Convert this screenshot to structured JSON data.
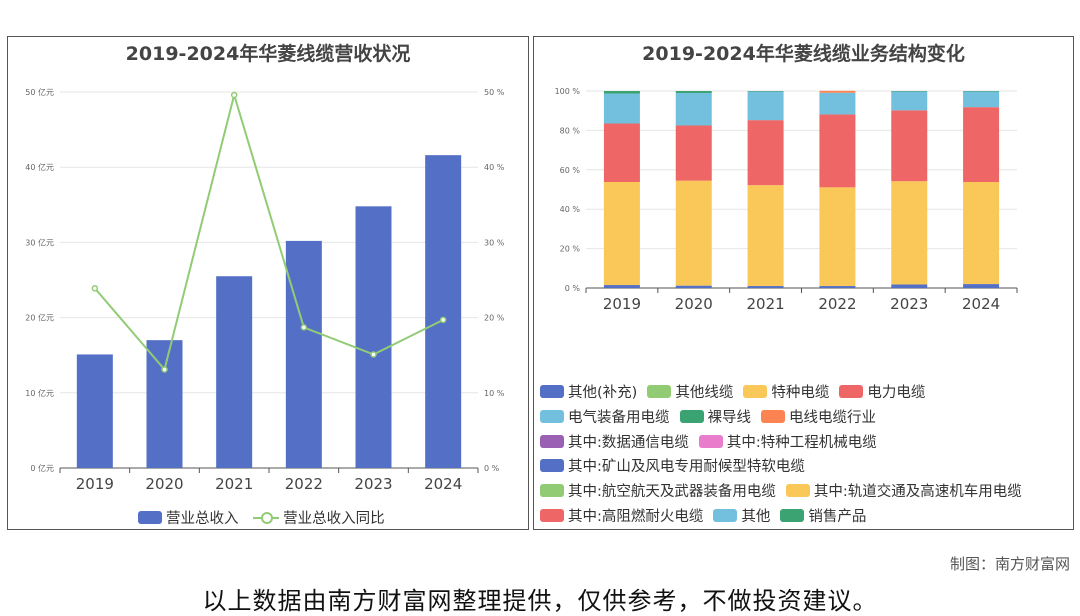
{
  "left_chart": {
    "title": "2019-2024年华菱线缆营收状况",
    "y_left_ticks": [
      "0 亿元",
      "10 亿元",
      "20 亿元",
      "30 亿元",
      "40 亿元",
      "50 亿元"
    ],
    "y_right_ticks": [
      "0 %",
      "10 %",
      "20 %",
      "30 %",
      "40 %",
      "50 %"
    ],
    "legend_bar": "营业总收入",
    "legend_line": "营业总收入同比",
    "bar_color": "#5470c6",
    "line_color": "#91cc75"
  },
  "right_chart": {
    "title": "2019-2024年华菱线缆业务结构变化",
    "y_ticks": [
      "0 %",
      "20 %",
      "40 %",
      "60 %",
      "80 %",
      "100 %"
    ],
    "legend": [
      {
        "name": "其他(补充)",
        "color": "#5470c6"
      },
      {
        "name": "其他线缆",
        "color": "#91cc75"
      },
      {
        "name": "特种电缆",
        "color": "#fac858"
      },
      {
        "name": "电力电缆",
        "color": "#ee6666"
      },
      {
        "name": "电气装备用电缆",
        "color": "#73c0de"
      },
      {
        "name": "裸导线",
        "color": "#3ba272"
      },
      {
        "name": "电线电缆行业",
        "color": "#fc8452"
      },
      {
        "name": "其中:数据通信电缆",
        "color": "#9a60b4"
      },
      {
        "name": "其中:特种工程机械电缆",
        "color": "#ea7ccc"
      },
      {
        "name": "其中:矿山及风电专用耐候型特软电缆",
        "color": "#5470c6"
      },
      {
        "name": "其中:航空航天及武器装备用电缆",
        "color": "#91cc75"
      },
      {
        "name": "其中:轨道交通及高速机车用电缆",
        "color": "#fac858"
      },
      {
        "name": "其中:高阻燃耐火电缆",
        "color": "#ee6666"
      },
      {
        "name": "其他",
        "color": "#73c0de"
      },
      {
        "name": "销售产品",
        "color": "#3ba272"
      }
    ]
  },
  "chart_data": [
    {
      "type": "bar",
      "title": "2019-2024年华菱线缆营收状况",
      "categories": [
        "2019",
        "2020",
        "2021",
        "2022",
        "2023",
        "2024"
      ],
      "series": [
        {
          "name": "营业总收入",
          "type": "bar",
          "axis": "left",
          "values": [
            15.1,
            17.0,
            25.5,
            30.2,
            34.8,
            41.6
          ]
        },
        {
          "name": "营业总收入同比",
          "type": "line",
          "axis": "right",
          "values": [
            23.9,
            13.1,
            49.6,
            18.7,
            15.1,
            19.7
          ]
        }
      ],
      "ylim_left": [
        0,
        50
      ],
      "ylim_right": [
        0,
        50
      ]
    },
    {
      "type": "bar",
      "title": "2019-2024年华菱线缆业务结构变化",
      "stacked": true,
      "categories": [
        "2019",
        "2020",
        "2021",
        "2022",
        "2023",
        "2024"
      ],
      "ylim": [
        0,
        100
      ],
      "series": [
        {
          "name": "其他(补充)",
          "values": [
            1.5,
            1.2,
            1.0,
            1.0,
            1.8,
            2.0
          ]
        },
        {
          "name": "特种电缆",
          "values": [
            52.3,
            53.3,
            51.2,
            50.1,
            52.4,
            51.8
          ]
        },
        {
          "name": "电力电缆",
          "values": [
            29.7,
            28.0,
            33.0,
            37.0,
            36.0,
            38.0
          ]
        },
        {
          "name": "电气装备用电缆",
          "values": [
            15.2,
            16.5,
            14.5,
            11.0,
            9.5,
            7.9
          ]
        },
        {
          "name": "电线电缆行业",
          "values": [
            0,
            0,
            0,
            1.0,
            0,
            0
          ]
        },
        {
          "name": "裸导线",
          "values": [
            1.3,
            1.0,
            0.3,
            0,
            0.3,
            0.3
          ]
        }
      ]
    }
  ],
  "footer": {
    "credit": "制图：南方财富网",
    "disclaimer": "以上数据由南方财富网整理提供，仅供参考，不做投资建议。"
  }
}
